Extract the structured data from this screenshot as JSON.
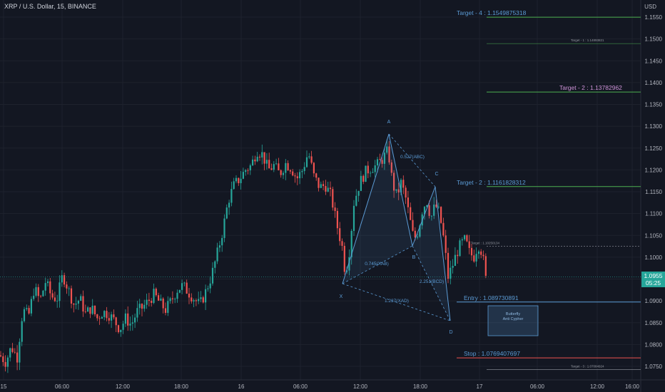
{
  "header": {
    "symbol_line": "XRP / U.S. Dollar, 15, BINANCE",
    "currency": "USD"
  },
  "last_price": {
    "value": "1.0955",
    "countdown": "05:25",
    "color": "#26a69a"
  },
  "colors": {
    "background": "#131722",
    "up": "#26a69a",
    "down": "#ef5350",
    "pattern": "#5b9bd5",
    "stop_line": "#ef5350",
    "target_line": "#4caf50",
    "purple_label": "#ce93d8"
  },
  "chart_data": {
    "type": "candlestick",
    "y_axis_ticks": [
      "1.1550",
      "1.1500",
      "1.1450",
      "1.1400",
      "1.1350",
      "1.1300",
      "1.1250",
      "1.1200",
      "1.1150",
      "1.1100",
      "1.1050",
      "1.1000",
      "1.0950",
      "1.0900",
      "1.0850",
      "1.0800",
      "1.0750"
    ],
    "ylim": [
      1.073,
      1.157
    ],
    "x_axis_ticks": [
      "15",
      "06:00",
      "12:00",
      "18:00",
      "16",
      "06:00",
      "12:00",
      "18:00",
      "17",
      "06:00",
      "12:00",
      "16:00"
    ],
    "price_path": [
      [
        0,
        1.0775
      ],
      [
        8,
        1.076
      ],
      [
        16,
        1.0795
      ],
      [
        24,
        1.077
      ],
      [
        32,
        1.088
      ],
      [
        40,
        1.0865
      ],
      [
        48,
        1.093
      ],
      [
        56,
        1.09
      ],
      [
        64,
        1.0945
      ],
      [
        72,
        1.091
      ],
      [
        80,
        1.0905
      ],
      [
        88,
        1.096
      ],
      [
        96,
        1.0925
      ],
      [
        104,
        1.089
      ],
      [
        112,
        1.0905
      ],
      [
        120,
        1.087
      ],
      [
        128,
        1.0885
      ],
      [
        136,
        1.086
      ],
      [
        144,
        1.0875
      ],
      [
        152,
        1.087
      ],
      [
        160,
        1.0855
      ],
      [
        168,
        1.0835
      ],
      [
        176,
        1.086
      ],
      [
        184,
        1.0845
      ],
      [
        192,
        1.0875
      ],
      [
        200,
        1.0885
      ],
      [
        208,
        1.09
      ],
      [
        216,
        1.0915
      ],
      [
        224,
        1.0895
      ],
      [
        232,
        1.088
      ],
      [
        240,
        1.09
      ],
      [
        248,
        1.0925
      ],
      [
        256,
        1.0935
      ],
      [
        264,
        1.092
      ],
      [
        272,
        1.0905
      ],
      [
        280,
        1.089
      ],
      [
        288,
        1.092
      ],
      [
        296,
        1.0955
      ],
      [
        304,
        1.1005
      ],
      [
        312,
        1.106
      ],
      [
        320,
        1.113
      ],
      [
        328,
        1.1165
      ],
      [
        336,
        1.118
      ],
      [
        344,
        1.12
      ],
      [
        352,
        1.121
      ],
      [
        360,
        1.1245
      ],
      [
        368,
        1.1235
      ],
      [
        376,
        1.12
      ],
      [
        384,
        1.121
      ],
      [
        392,
        1.119
      ],
      [
        400,
        1.1215
      ],
      [
        408,
        1.1205
      ],
      [
        416,
        1.118
      ],
      [
        424,
        1.12
      ],
      [
        432,
        1.124
      ],
      [
        440,
        1.1185
      ],
      [
        448,
        1.116
      ],
      [
        456,
        1.1165
      ],
      [
        464,
        1.114
      ],
      [
        472,
        1.1075
      ],
      [
        480,
        1.102
      ],
      [
        484,
        1.096
      ],
      [
        490,
        1.102
      ],
      [
        496,
        1.1125
      ],
      [
        504,
        1.117
      ],
      [
        512,
        1.1195
      ],
      [
        520,
        1.1205
      ],
      [
        528,
        1.121
      ],
      [
        536,
        1.1225
      ],
      [
        544,
        1.1245
      ],
      [
        550,
        1.117
      ],
      [
        556,
        1.114
      ],
      [
        562,
        1.117
      ],
      [
        568,
        1.114
      ],
      [
        574,
        1.109
      ],
      [
        580,
        1.104
      ],
      [
        586,
        1.106
      ],
      [
        592,
        1.111
      ],
      [
        598,
        1.113
      ],
      [
        604,
        1.109
      ],
      [
        610,
        1.112
      ],
      [
        616,
        1.11
      ],
      [
        622,
        1.104
      ],
      [
        628,
        1.0955
      ],
      [
        634,
        1.098
      ],
      [
        640,
        1.101
      ],
      [
        646,
        1.103
      ],
      [
        652,
        1.104
      ],
      [
        658,
        1.101
      ],
      [
        664,
        1.1
      ],
      [
        670,
        1.103
      ],
      [
        676,
        1.101
      ],
      [
        682,
        1.0935
      ]
    ],
    "harmonic_pattern": {
      "points": [
        {
          "label": "X",
          "x": "16 10:00",
          "price": 1.0945
        },
        {
          "label": "A",
          "x": "16 14:15",
          "price": 1.1285
        },
        {
          "label": "B",
          "x": "16 17:15",
          "price": 1.103
        },
        {
          "label": "C",
          "x": "16 18:45",
          "price": 1.1165
        },
        {
          "label": "D",
          "x": "16 20:45",
          "price": 1.0855
        }
      ],
      "ratios": [
        {
          "text": "0.527(ABC)"
        },
        {
          "text": "0.745(XAB)"
        },
        {
          "text": "2.251(BCD)"
        },
        {
          "text": "1.237(XAD)"
        }
      ],
      "note_lines": [
        "Butterfly",
        "Anti Cypher"
      ]
    },
    "levels": [
      {
        "label": "Target - 4 : 1.1549875318",
        "price": 1.1549875318,
        "color": "#4caf50",
        "label_color": "#5b9bd5"
      },
      {
        "label": "Target - 1 : 1.14893821",
        "price": 1.1489382,
        "color": "#4caf50",
        "label_color": "#9598a1",
        "small": true
      },
      {
        "label": "Target - 2 : 1.13782962",
        "price": 1.13782962,
        "color": "#4caf50",
        "label_color": "#ce93d8"
      },
      {
        "label": "Target - 2 : 1.1161828312",
        "price": 1.1161828312,
        "color": "#4caf50",
        "label_color": "#5b9bd5"
      },
      {
        "label": "Target : 1.10250134",
        "price": 1.1025,
        "color": "#9598a1",
        "label_color": "#9598a1",
        "small": true
      },
      {
        "label": "Entry : 1.089730891",
        "price": 1.089730891,
        "color": "#5b9bd5",
        "label_color": "#5b9bd5"
      },
      {
        "label": "Stop : 1.0769407697",
        "price": 1.0769407697,
        "color": "#ef5350",
        "label_color": "#5b9bd5"
      },
      {
        "label": "Target - 3 : 1.07084924",
        "price": 1.0743,
        "color": "#9598a1",
        "label_color": "#9598a1",
        "small": true
      }
    ],
    "current_price_line": 1.0955
  }
}
